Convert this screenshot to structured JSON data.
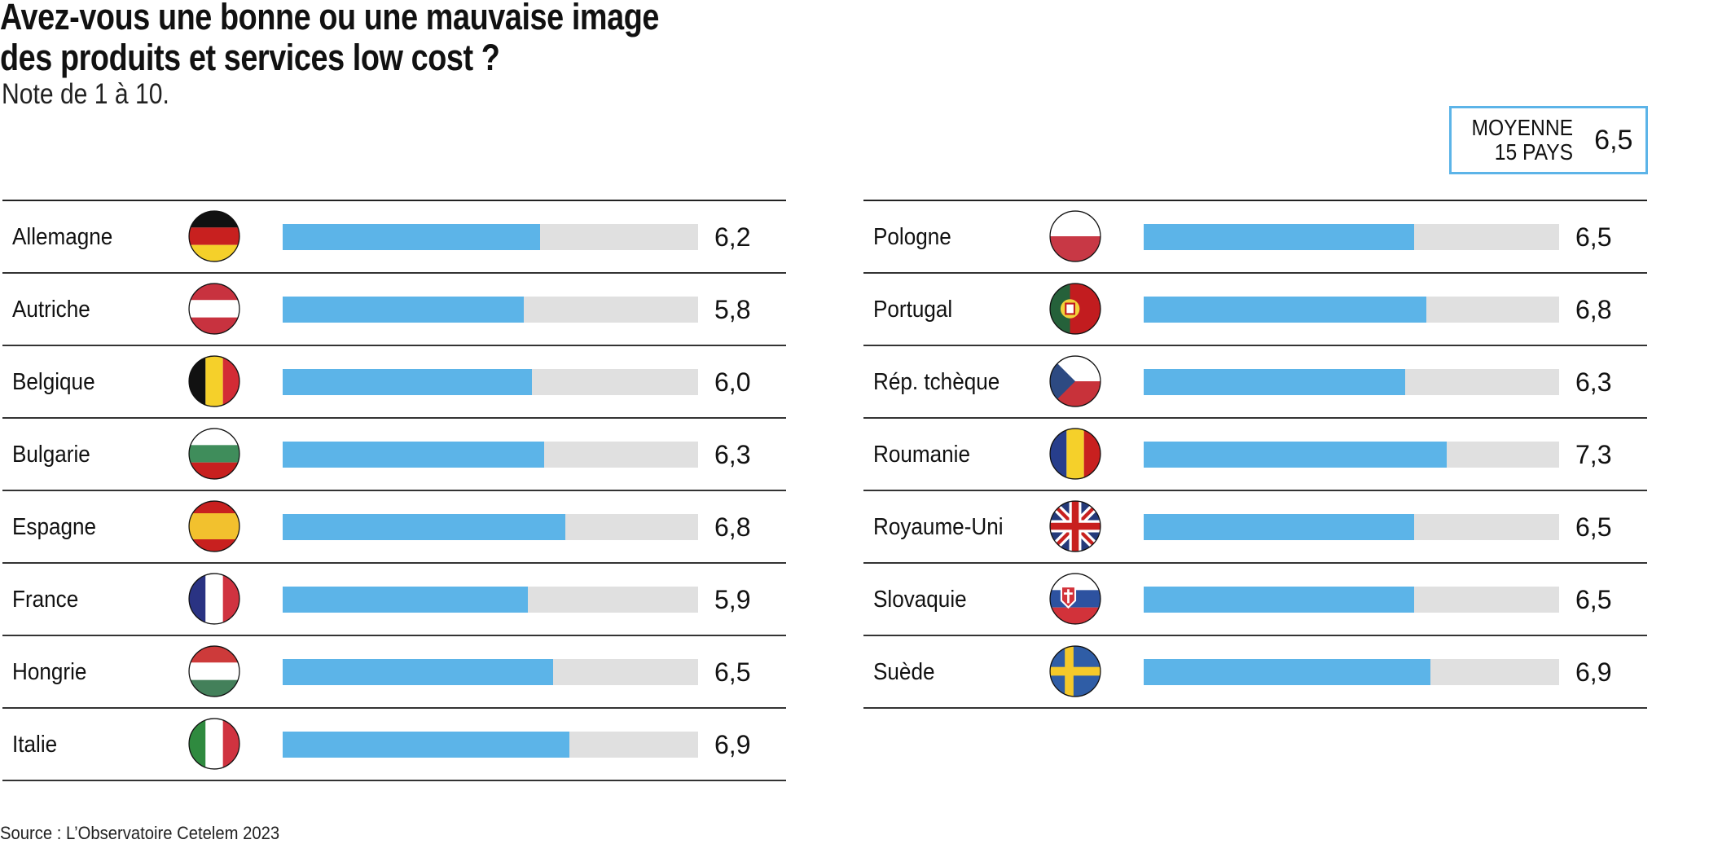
{
  "chart_data": {
    "type": "bar",
    "title": "Avez-vous une bonne ou une mauvaise image des produits et services low cost ?",
    "title_lines": [
      "Avez-vous une bonne ou une mauvaise image",
      "des produits et services low cost ?"
    ],
    "subtitle": "Note de 1 à 10.",
    "xlim": [
      0,
      10
    ],
    "average": {
      "label_line1": "MOYENNE",
      "label_line2": "15 PAYS",
      "value": 6.5,
      "display": "6,5"
    },
    "columns": [
      [
        {
          "country": "Allemagne",
          "flag": "de",
          "value": 6.2,
          "display": "6,2"
        },
        {
          "country": "Autriche",
          "flag": "at",
          "value": 5.8,
          "display": "5,8"
        },
        {
          "country": "Belgique",
          "flag": "be",
          "value": 6.0,
          "display": "6,0"
        },
        {
          "country": "Bulgarie",
          "flag": "bg",
          "value": 6.3,
          "display": "6,3"
        },
        {
          "country": "Espagne",
          "flag": "es",
          "value": 6.8,
          "display": "6,8"
        },
        {
          "country": "France",
          "flag": "fr",
          "value": 5.9,
          "display": "5,9"
        },
        {
          "country": "Hongrie",
          "flag": "hu",
          "value": 6.5,
          "display": "6,5"
        },
        {
          "country": "Italie",
          "flag": "it",
          "value": 6.9,
          "display": "6,9"
        }
      ],
      [
        {
          "country": "Pologne",
          "flag": "pl",
          "value": 6.5,
          "display": "6,5"
        },
        {
          "country": "Portugal",
          "flag": "pt",
          "value": 6.8,
          "display": "6,8"
        },
        {
          "country": "Rép. tchèque",
          "flag": "cz",
          "value": 6.3,
          "display": "6,3"
        },
        {
          "country": "Roumanie",
          "flag": "ro",
          "value": 7.3,
          "display": "7,3"
        },
        {
          "country": "Royaume-Uni",
          "flag": "gb",
          "value": 6.5,
          "display": "6,5"
        },
        {
          "country": "Slovaquie",
          "flag": "sk",
          "value": 6.5,
          "display": "6,5"
        },
        {
          "country": "Suède",
          "flag": "se",
          "value": 6.9,
          "display": "6,9"
        }
      ]
    ],
    "colors": {
      "bar": "#5cb4e8",
      "track": "#e0e0e0"
    },
    "source": "Source : L’Observatoire Cetelem 2023"
  }
}
